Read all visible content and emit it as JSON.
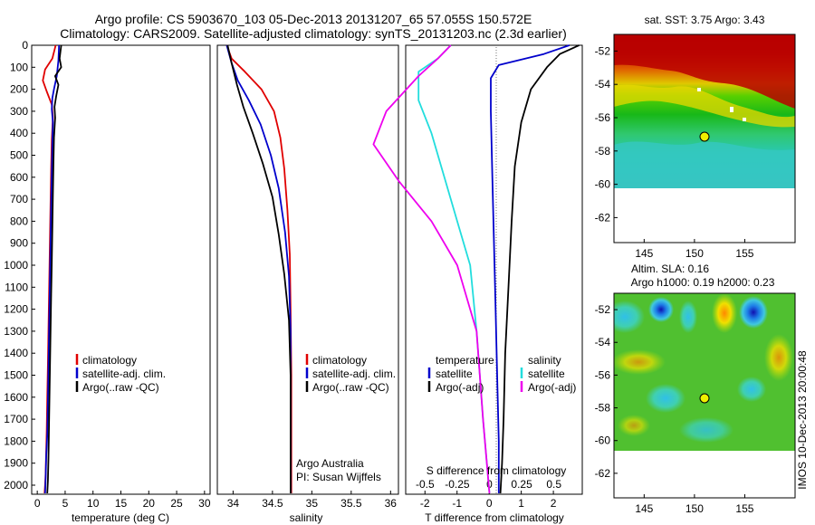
{
  "header": {
    "line1": "Argo profile: CS 5903670_103 05-Dec-2013 20131207_65 57.055S 150.572E",
    "line2": "Climatology: CARS2009. Satellite-adjusted climatology: synTS_20131203.nc (2.3d earlier)"
  },
  "colors": {
    "climatology": "#e00000",
    "satellite": "#0000cc",
    "argo": "#000000",
    "sat_salinity": "#22dddd",
    "argo_adj_salinity": "#ee00ee"
  },
  "chart_data": [
    {
      "type": "line",
      "xlabel": "temperature (deg C)",
      "xlim": [
        -1,
        31
      ],
      "xticks": [
        0,
        5,
        10,
        15,
        20,
        25,
        30
      ],
      "ylim": [
        0,
        2050
      ],
      "yticks": [
        0,
        100,
        200,
        300,
        400,
        500,
        600,
        700,
        800,
        900,
        1000,
        1100,
        1200,
        1300,
        1400,
        1500,
        1600,
        1700,
        1800,
        1900,
        2000
      ],
      "y_reversed": true,
      "legend": [
        "climatology",
        "satellite-adj. clim.",
        "Argo(..raw -QC)"
      ],
      "series": [
        {
          "name": "climatology",
          "color": "#e00000",
          "x": [
            3.3,
            2.7,
            1.4,
            1.0,
            1.7,
            2.6,
            2.8,
            2.6,
            2.5,
            2.4,
            2.3,
            2.2,
            2.1,
            2.0,
            1.9,
            1.8,
            1.7,
            1.6,
            1.5,
            1.4,
            1.3
          ],
          "y": [
            0,
            60,
            110,
            160,
            210,
            270,
            330,
            430,
            560,
            700,
            850,
            1000,
            1150,
            1300,
            1450,
            1600,
            1750,
            1850,
            1950,
            2000,
            2050
          ]
        },
        {
          "name": "satellite-adj. clim.",
          "color": "#0000cc",
          "x": [
            3.9,
            3.8,
            3.5,
            3.0,
            2.7,
            2.6,
            2.8,
            2.7,
            2.6,
            2.5,
            2.4,
            2.3,
            2.2,
            2.1,
            2.0,
            1.9,
            1.8,
            1.6,
            1.5,
            1.4
          ],
          "y": [
            0,
            70,
            140,
            200,
            240,
            290,
            350,
            450,
            580,
            720,
            870,
            1020,
            1170,
            1320,
            1470,
            1620,
            1770,
            1870,
            1970,
            2050
          ]
        },
        {
          "name": "Argo(..raw -QC)",
          "color": "#000000",
          "x": [
            4.3,
            4.0,
            4.3,
            3.2,
            3.8,
            3.4,
            3.1,
            3.2,
            3.0,
            2.9,
            2.8,
            2.7,
            2.6,
            2.5,
            2.4,
            2.3,
            2.2,
            2.1,
            2.0,
            1.9,
            1.8
          ],
          "y": [
            0,
            60,
            100,
            140,
            180,
            230,
            280,
            330,
            420,
            540,
            680,
            830,
            980,
            1130,
            1280,
            1430,
            1580,
            1730,
            1880,
            1980,
            2050
          ]
        }
      ]
    },
    {
      "type": "line",
      "xlabel": "salinity",
      "xlim": [
        33.8,
        36.1
      ],
      "xticks": [
        34,
        34.5,
        35,
        35.5,
        36
      ],
      "ylim": [
        0,
        2050
      ],
      "y_reversed": true,
      "legend": [
        "climatology",
        "satellite-adj. clim.",
        "Argo(..raw -QC)"
      ],
      "annotation": [
        "Argo Australia",
        "PI: Susan Wijffels"
      ],
      "series": [
        {
          "name": "climatology",
          "color": "#e00000",
          "x": [
            33.92,
            33.98,
            34.15,
            34.36,
            34.52,
            34.6,
            34.65,
            34.69,
            34.72,
            34.73,
            34.74,
            34.74,
            34.74
          ],
          "y": [
            0,
            60,
            120,
            200,
            300,
            420,
            560,
            750,
            950,
            1200,
            1500,
            1800,
            2050
          ]
        },
        {
          "name": "satellite-adj. clim.",
          "color": "#0000cc",
          "x": [
            33.92,
            33.98,
            34.06,
            34.2,
            34.35,
            34.48,
            34.58,
            34.66,
            34.71,
            34.73,
            34.73,
            34.73,
            34.73
          ],
          "y": [
            0,
            80,
            160,
            250,
            360,
            500,
            650,
            850,
            1050,
            1300,
            1600,
            1900,
            2050
          ]
        },
        {
          "name": "Argo(..raw -QC)",
          "color": "#000000",
          "x": [
            33.93,
            33.98,
            34.05,
            34.13,
            34.25,
            34.38,
            34.5,
            34.58,
            34.65,
            34.71,
            34.73,
            34.73,
            34.73
          ],
          "y": [
            0,
            80,
            180,
            280,
            400,
            540,
            690,
            860,
            1040,
            1250,
            1500,
            1800,
            2050
          ]
        }
      ]
    },
    {
      "type": "line",
      "xlabel": "T difference from climatology",
      "xlabel2": "S difference from climatology",
      "xlim": [
        -2.6,
        2.9
      ],
      "xticks": [
        -2,
        -1,
        0,
        1,
        2
      ],
      "xticks2": [
        -0.5,
        -0.25,
        0,
        0.25,
        0.5
      ],
      "ylim": [
        0,
        2050
      ],
      "y_reversed": true,
      "legend_temperature": [
        "temperature",
        "satellite",
        "Argo(-adj)"
      ],
      "legend_salinity": [
        "salinity",
        "satellite",
        "Argo(-adj)"
      ],
      "series": [
        {
          "name": "satellite",
          "group": "temperature",
          "color": "#0000cc",
          "x": [
            2.5,
            1.7,
            0.3,
            0.05,
            0.05,
            0.1,
            0.15,
            0.2,
            0.25,
            0.3,
            0.3,
            0.3
          ],
          "y": [
            0,
            40,
            90,
            150,
            300,
            600,
            900,
            1200,
            1500,
            1800,
            1950,
            2050
          ]
        },
        {
          "name": "Argo(-adj)",
          "group": "temperature",
          "color": "#000000",
          "x": [
            2.8,
            2.2,
            1.8,
            1.3,
            1.0,
            0.8,
            0.7,
            0.6,
            0.5,
            0.45,
            0.4,
            0.35
          ],
          "y": [
            0,
            40,
            100,
            200,
            350,
            550,
            800,
            1100,
            1400,
            1700,
            1900,
            2050
          ]
        },
        {
          "name": "satellite",
          "group": "salinity",
          "color": "#22dddd",
          "x": [
            -0.3,
            -0.4,
            -0.55,
            -0.55,
            -0.45,
            -0.35,
            -0.25,
            -0.15,
            -0.1,
            -0.05,
            0.0
          ],
          "y": [
            0,
            60,
            120,
            250,
            400,
            600,
            800,
            1000,
            1300,
            1700,
            2050
          ]
        },
        {
          "name": "Argo(-adj)",
          "group": "salinity",
          "color": "#ee00ee",
          "x": [
            -0.3,
            -0.4,
            -0.55,
            -0.8,
            -0.9,
            -0.7,
            -0.45,
            -0.25,
            -0.1,
            -0.05,
            0.0
          ],
          "y": [
            0,
            60,
            140,
            300,
            450,
            620,
            800,
            1000,
            1300,
            1700,
            2050
          ]
        }
      ]
    },
    {
      "type": "heatmap",
      "title": "sat. SST: 3.75 Argo: 3.43",
      "xlim": [
        142,
        160
      ],
      "ylim": [
        -63.5,
        -51
      ],
      "xticks": [
        145,
        150,
        155
      ],
      "yticks": [
        -52,
        -54,
        -56,
        -58,
        -60,
        -62
      ],
      "marker": {
        "lon": 150.572,
        "lat": -57.055
      }
    },
    {
      "type": "heatmap",
      "title": "Altim. SLA: 0.16",
      "subtitle": "Argo h1000: 0.19 h2000: 0.23",
      "side_label": "IMOS 10-Dec-2013 20:00:48",
      "xlim": [
        142,
        160
      ],
      "ylim": [
        -63.5,
        -51
      ],
      "xticks": [
        145,
        150,
        155
      ],
      "yticks": [
        -52,
        -54,
        -56,
        -58,
        -60,
        -62
      ],
      "marker": {
        "lon": 150.572,
        "lat": -57.055
      }
    }
  ]
}
